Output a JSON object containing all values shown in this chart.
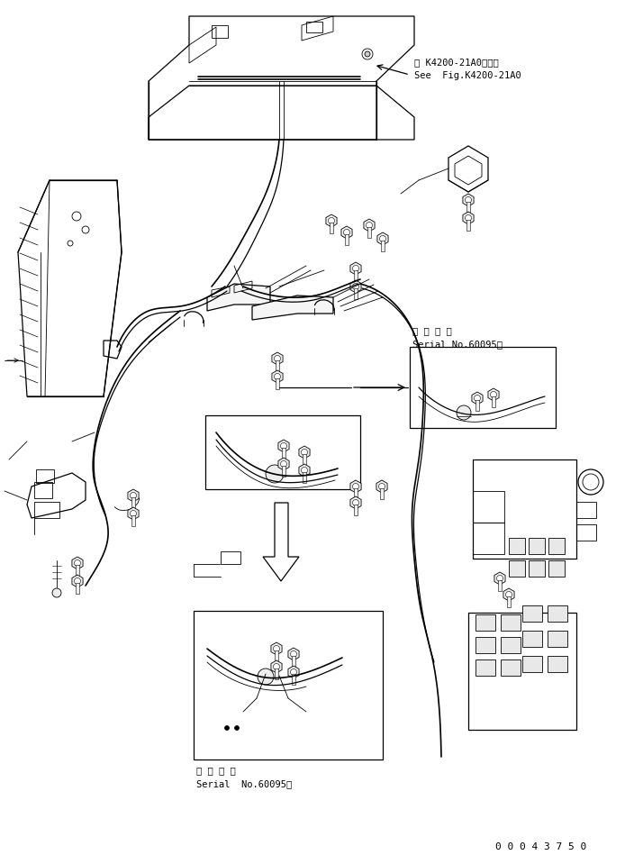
{
  "bg_color": "#ffffff",
  "line_color": "#000000",
  "fig_width": 7.14,
  "fig_height": 9.49,
  "dpi": 100,
  "annotation1_line1": "第 K4200-21A0図参照",
  "annotation1_line2": "See  Fig.K4200-21A0",
  "annotation2_line1": "適 用 号 機",
  "annotation2_line2": "Serial No.60095～",
  "annotation3_line1": "適 用 号 機",
  "annotation3_line2": "Serial  No.60095～",
  "part_number": "0 0 0 4 3 7 5 0"
}
